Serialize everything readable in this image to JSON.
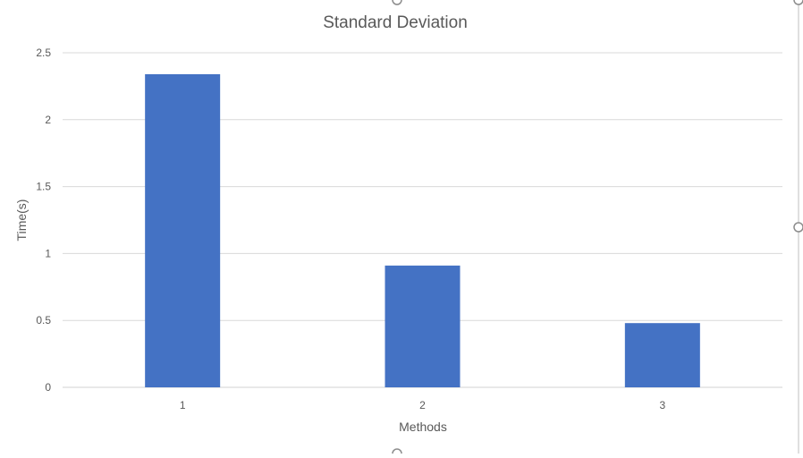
{
  "chart_data": {
    "type": "bar",
    "title": "Standard Deviation",
    "xlabel": "Methods",
    "ylabel": "Time(s)",
    "categories": [
      "1",
      "2",
      "3"
    ],
    "values": [
      2.34,
      0.91,
      0.48
    ],
    "ylim": [
      0,
      2.5
    ],
    "yticks": [
      "0",
      "0.5",
      "1",
      "1.5",
      "2",
      "2.5"
    ],
    "grid": true,
    "legend": "none",
    "bar_color": "#4472C4"
  }
}
